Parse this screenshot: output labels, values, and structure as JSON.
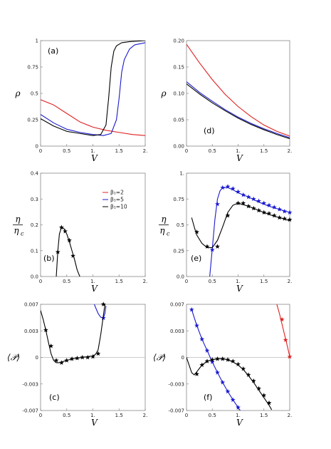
{
  "chart_data": [
    {
      "id": "a",
      "type": "line",
      "label": "(a)",
      "xlabel": "V",
      "ylabel": "ρ",
      "xlim": [
        0,
        2
      ],
      "ylim": [
        0,
        1
      ],
      "xticks": [
        "0",
        "0.5",
        "1.",
        "1.5",
        "2."
      ],
      "yticks": [
        "0",
        "0.25",
        "0.5",
        "0.75",
        "1"
      ],
      "series": [
        {
          "color": "#e02020",
          "x": [
            0,
            0.25,
            0.5,
            0.75,
            1.0,
            1.25,
            1.5,
            1.75,
            2.0
          ],
          "y": [
            0.44,
            0.39,
            0.31,
            0.23,
            0.18,
            0.15,
            0.13,
            0.11,
            0.1
          ]
        },
        {
          "color": "#1a1ad0",
          "x": [
            0,
            0.25,
            0.5,
            0.75,
            1.0,
            1.2,
            1.35,
            1.45,
            1.5,
            1.55,
            1.6,
            1.7,
            1.8,
            2.0
          ],
          "y": [
            0.3,
            0.22,
            0.16,
            0.13,
            0.11,
            0.1,
            0.12,
            0.25,
            0.45,
            0.7,
            0.82,
            0.92,
            0.96,
            0.98
          ]
        },
        {
          "color": "#000000",
          "x": [
            0,
            0.25,
            0.5,
            0.75,
            1.0,
            1.15,
            1.25,
            1.3,
            1.35,
            1.4,
            1.45,
            1.55,
            1.7,
            2.0
          ],
          "y": [
            0.26,
            0.19,
            0.14,
            0.12,
            0.1,
            0.11,
            0.2,
            0.45,
            0.75,
            0.9,
            0.95,
            0.98,
            0.99,
            1.0
          ]
        }
      ]
    },
    {
      "id": "d",
      "type": "line",
      "label": "(d)",
      "xlabel": "V",
      "ylabel": "ρ",
      "xlim": [
        0,
        2
      ],
      "ylim": [
        0,
        0.2
      ],
      "xticks": [
        "0",
        "0.5",
        "1.",
        "1.5",
        "2."
      ],
      "yticks": [
        "0.00",
        "0.05",
        "0.10",
        "0.15",
        "0.20"
      ],
      "series": [
        {
          "color": "#e02020",
          "x": [
            0,
            0.25,
            0.5,
            0.75,
            1.0,
            1.25,
            1.5,
            1.75,
            2.0
          ],
          "y": [
            0.193,
            0.158,
            0.126,
            0.098,
            0.075,
            0.056,
            0.04,
            0.028,
            0.019
          ]
        },
        {
          "color": "#1a1ad0",
          "x": [
            0,
            0.25,
            0.5,
            0.75,
            1.0,
            1.25,
            1.5,
            1.75,
            2.0
          ],
          "y": [
            0.122,
            0.102,
            0.085,
            0.069,
            0.055,
            0.043,
            0.033,
            0.024,
            0.016
          ]
        },
        {
          "color": "#000000",
          "x": [
            0,
            0.25,
            0.5,
            0.75,
            1.0,
            1.25,
            1.5,
            1.75,
            2.0
          ],
          "y": [
            0.118,
            0.099,
            0.082,
            0.067,
            0.053,
            0.041,
            0.031,
            0.022,
            0.014
          ]
        }
      ]
    },
    {
      "id": "b",
      "type": "line",
      "label": "(b)",
      "xlabel": "V",
      "ylabel": "η / η_c",
      "ylabel_top": "η",
      "ylabel_bot": "η",
      "ylabel_sub": "c",
      "xlim": [
        0,
        2
      ],
      "ylim": [
        0,
        0.4
      ],
      "xticks": [
        "0",
        "0.5",
        "1.",
        "1.5",
        "2."
      ],
      "yticks": [
        "0.0",
        "0.1",
        "0.2",
        "0.3",
        "0.4"
      ],
      "legend": {
        "position": "top-right",
        "entries": [
          {
            "label": "β₁=2",
            "color": "#e02020"
          },
          {
            "label": "β₁=5",
            "color": "#1a1ad0"
          },
          {
            "label": "β₁=10",
            "color": "#000000"
          }
        ]
      },
      "series": [
        {
          "color": "#000000",
          "x": [
            0.3,
            0.33,
            0.36,
            0.4,
            0.45,
            0.5,
            0.55,
            0.6,
            0.65,
            0.7,
            0.75
          ],
          "y": [
            0.0,
            0.1,
            0.165,
            0.19,
            0.185,
            0.165,
            0.135,
            0.1,
            0.065,
            0.025,
            0.0
          ],
          "markers_x": [
            0.33,
            0.4,
            0.47,
            0.55,
            0.62
          ],
          "markers_y": [
            0.095,
            0.19,
            0.175,
            0.14,
            0.08
          ]
        }
      ]
    },
    {
      "id": "e",
      "type": "line",
      "label": "(e)",
      "xlabel": "V",
      "ylabel": "η / η_c",
      "ylabel_top": "η",
      "ylabel_bot": "η",
      "ylabel_sub": "c",
      "xlim": [
        0,
        2
      ],
      "ylim": [
        0,
        1
      ],
      "xticks": [
        "0",
        "0.5",
        "1.",
        "1.5",
        "2."
      ],
      "yticks": [
        "0.0",
        "0.25",
        "0.5",
        "0.75",
        "1."
      ],
      "series": [
        {
          "color": "#1a1ad0",
          "x": [
            0.45,
            0.5,
            0.55,
            0.6,
            0.65,
            0.7,
            0.8,
            0.9,
            1.0,
            1.2,
            1.4,
            1.6,
            1.8,
            2.0
          ],
          "y": [
            0.0,
            0.27,
            0.55,
            0.75,
            0.83,
            0.86,
            0.86,
            0.84,
            0.81,
            0.77,
            0.72,
            0.68,
            0.65,
            0.62
          ],
          "markers_x": [
            0.5,
            0.6,
            0.7,
            0.8,
            0.9,
            1.0,
            1.1,
            1.2,
            1.3,
            1.4,
            1.5,
            1.6,
            1.7,
            1.8,
            1.9,
            2.0
          ],
          "markers_y": [
            0.26,
            0.7,
            0.86,
            0.87,
            0.85,
            0.82,
            0.79,
            0.77,
            0.75,
            0.73,
            0.71,
            0.69,
            0.67,
            0.65,
            0.63,
            0.62
          ]
        },
        {
          "color": "#000000",
          "x": [
            0.1,
            0.15,
            0.2,
            0.3,
            0.4,
            0.5,
            0.6,
            0.7,
            0.8,
            0.9,
            1.0,
            1.2,
            1.4,
            1.6,
            1.8,
            2.0
          ],
          "y": [
            0.57,
            0.48,
            0.4,
            0.32,
            0.28,
            0.28,
            0.35,
            0.48,
            0.62,
            0.69,
            0.71,
            0.68,
            0.64,
            0.6,
            0.57,
            0.54
          ],
          "markers_x": [
            0.2,
            0.4,
            0.6,
            0.8,
            1.0,
            1.1,
            1.2,
            1.3,
            1.4,
            1.5,
            1.6,
            1.7,
            1.8,
            1.9,
            2.0
          ],
          "markers_y": [
            0.43,
            0.29,
            0.29,
            0.59,
            0.71,
            0.71,
            0.68,
            0.66,
            0.64,
            0.62,
            0.61,
            0.59,
            0.57,
            0.56,
            0.55
          ]
        }
      ]
    },
    {
      "id": "c",
      "type": "line",
      "label": "(c)",
      "xlabel": "V",
      "ylabel": "⟨𝒫⟩",
      "xlim": [
        0,
        2
      ],
      "ylim": [
        -0.007,
        0.007
      ],
      "xticks": [
        "0",
        "0.5",
        "1.",
        "1.5",
        "2."
      ],
      "yticks": [
        "-0.007",
        "-0.003",
        "0",
        "0.003",
        "0.007"
      ],
      "series": [
        {
          "color": "#1a1ad0",
          "x": [
            1.0,
            1.05,
            1.1,
            1.15,
            1.2,
            1.23,
            1.25
          ],
          "y": [
            0.0075,
            0.0066,
            0.0058,
            0.0053,
            0.0052,
            0.0058,
            0.0068
          ],
          "markers_x": [
            1.2
          ],
          "markers_y": [
            0.0052
          ]
        },
        {
          "color": "#000000",
          "x": [
            0.0,
            0.05,
            0.1,
            0.15,
            0.2,
            0.25,
            0.3,
            0.35,
            0.4,
            0.5,
            0.6,
            0.7,
            0.8,
            0.9,
            1.0,
            1.05,
            1.1,
            1.15,
            1.2,
            1.25,
            1.3
          ],
          "y": [
            0.0062,
            0.005,
            0.0036,
            0.002,
            0.0005,
            -0.0004,
            -0.0007,
            -0.0007,
            -0.0006,
            -0.0004,
            -0.0002,
            -0.0001,
            0.0,
            0.0001,
            0.0002,
            0.0004,
            0.001,
            0.003,
            0.0055,
            0.008,
            0.01
          ],
          "markers_x": [
            0.1,
            0.2,
            0.3,
            0.4,
            0.5,
            0.6,
            0.7,
            0.8,
            0.9,
            1.0,
            1.1,
            1.2
          ],
          "markers_y": [
            0.0036,
            0.0015,
            -0.0004,
            -0.0007,
            -0.0004,
            -0.0002,
            -0.0001,
            0.0,
            0.0,
            0.0001,
            0.0005,
            0.007
          ]
        }
      ]
    },
    {
      "id": "f",
      "type": "line",
      "label": "(f)",
      "xlabel": "V",
      "ylabel": "⟨𝒫⟩",
      "xlim": [
        0,
        2
      ],
      "ylim": [
        -0.007,
        0.007
      ],
      "xticks": [
        "0",
        "0.5",
        "1.",
        "1.5",
        "2."
      ],
      "yticks": [
        "-0.007",
        "-0.003",
        "0",
        "0.003",
        "0.007"
      ],
      "series": [
        {
          "color": "#e02020",
          "x": [
            1.75,
            1.8,
            1.85,
            1.9,
            1.95,
            2.0
          ],
          "y": [
            0.007,
            0.0058,
            0.0044,
            0.003,
            0.0016,
            0.0001
          ],
          "markers_x": [
            1.85,
            1.92,
            2.0
          ],
          "markers_y": [
            0.005,
            0.0023,
            0.0001
          ]
        },
        {
          "color": "#1a1ad0",
          "x": [
            0.1,
            0.2,
            0.3,
            0.4,
            0.5,
            0.6,
            0.7,
            0.8,
            0.9,
            1.0,
            1.05,
            1.1
          ],
          "y": [
            0.0063,
            0.0042,
            0.0024,
            0.0009,
            -0.0006,
            -0.002,
            -0.0033,
            -0.0045,
            -0.0056,
            -0.0066,
            -0.0071,
            -0.0075
          ],
          "markers_x": [
            0.1,
            0.2,
            0.3,
            0.4,
            0.5,
            0.6,
            0.7,
            0.8,
            0.9,
            1.0
          ],
          "markers_y": [
            0.0063,
            0.0042,
            0.0024,
            0.0009,
            -0.0006,
            -0.002,
            -0.0033,
            -0.0045,
            -0.0056,
            -0.0066
          ]
        },
        {
          "color": "#000000",
          "x": [
            0.0,
            0.05,
            0.1,
            0.15,
            0.2,
            0.3,
            0.4,
            0.5,
            0.6,
            0.7,
            0.8,
            0.9,
            1.0,
            1.1,
            1.2,
            1.3,
            1.4,
            1.5,
            1.6,
            1.65
          ],
          "y": [
            0.0,
            -0.001,
            -0.002,
            -0.0023,
            -0.0019,
            -0.001,
            -0.0005,
            -0.0003,
            -0.0002,
            -0.0002,
            -0.0003,
            -0.0006,
            -0.001,
            -0.0016,
            -0.0024,
            -0.0033,
            -0.0043,
            -0.0053,
            -0.0063,
            -0.0069
          ],
          "markers_x": [
            0.2,
            0.3,
            0.4,
            0.5,
            0.6,
            0.7,
            0.8,
            0.9,
            1.0,
            1.1,
            1.2,
            1.3,
            1.4,
            1.5,
            1.6
          ],
          "markers_y": [
            -0.0022,
            -0.001,
            -0.0005,
            -0.0003,
            -0.0002,
            -0.0002,
            -0.0003,
            -0.0005,
            -0.0009,
            -0.0015,
            -0.0023,
            -0.0031,
            -0.0041,
            -0.005,
            -0.006
          ]
        }
      ]
    }
  ]
}
